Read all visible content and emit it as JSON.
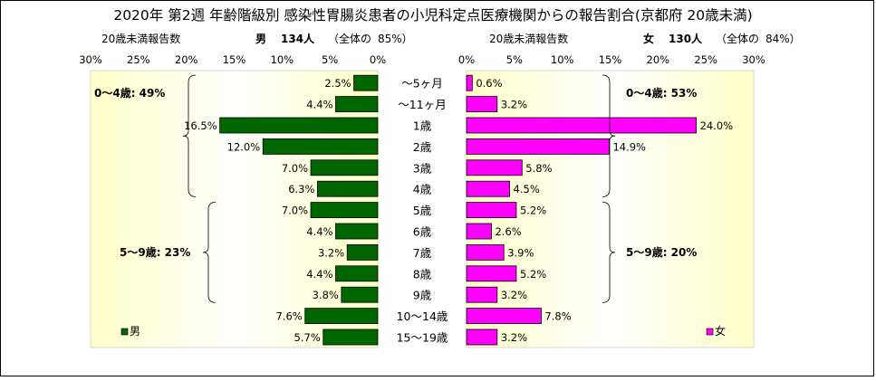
{
  "title": "2020年 第2週 年齢階級別 感染性胃腸炎患者の小児科定点医療機関からの報告割合(京都府 20歳未満)",
  "colors": {
    "male": "#006600",
    "female": "#ff00ff",
    "plot_bg_edge": "#ffffc8",
    "plot_bg_center": "#ffffff"
  },
  "chart_data": [
    {
      "type": "bar",
      "orientation": "horizontal",
      "direction": "right-to-left",
      "header": {
        "label": "20歳未満報告数",
        "sex": "男",
        "count": "134人",
        "total_note": "（全体の",
        "total_pct": "85%）"
      },
      "categories": [
        "～5ヶ月",
        "～11ヶ月",
        "1歳",
        "2歳",
        "3歳",
        "4歳",
        "5歳",
        "6歳",
        "7歳",
        "8歳",
        "9歳",
        "10～14歳",
        "15～19歳"
      ],
      "series": [
        {
          "name": "男",
          "values": [
            2.5,
            4.4,
            16.5,
            12.0,
            7.0,
            6.3,
            7.0,
            4.4,
            3.2,
            4.4,
            3.8,
            7.6,
            5.7
          ],
          "labels": [
            "2.5%",
            "4.4%",
            "16.5%",
            "12.0%",
            "7.0%",
            "6.3%",
            "7.0%",
            "4.4%",
            "3.2%",
            "4.4%",
            "3.8%",
            "7.6%",
            "5.7%"
          ]
        }
      ],
      "xlim": [
        0,
        30
      ],
      "ticks": [
        "30%",
        "25%",
        "20%",
        "15%",
        "10%",
        "5%",
        "0%"
      ],
      "annotations": [
        {
          "text": "0～4歳: 49%",
          "rows": [
            0,
            5
          ]
        },
        {
          "text": "5～9歳: 23%",
          "rows": [
            6,
            10
          ]
        }
      ],
      "legend": {
        "label": "男",
        "position": "bottom-left"
      }
    },
    {
      "type": "bar",
      "orientation": "horizontal",
      "direction": "left-to-right",
      "header": {
        "label": "20歳未満報告数",
        "sex": "女",
        "count": "130人",
        "total_note": "（全体の",
        "total_pct": "84%）"
      },
      "categories": [
        "～5ヶ月",
        "～11ヶ月",
        "1歳",
        "2歳",
        "3歳",
        "4歳",
        "5歳",
        "6歳",
        "7歳",
        "8歳",
        "9歳",
        "10～14歳",
        "15～19歳"
      ],
      "series": [
        {
          "name": "女",
          "values": [
            0.6,
            3.2,
            24.0,
            14.9,
            5.8,
            4.5,
            5.2,
            2.6,
            3.9,
            5.2,
            3.2,
            7.8,
            3.2
          ],
          "labels": [
            "0.6%",
            "3.2%",
            "24.0%",
            "14.9%",
            "5.8%",
            "4.5%",
            "5.2%",
            "2.6%",
            "3.9%",
            "5.2%",
            "3.2%",
            "7.8%",
            "3.2%"
          ]
        }
      ],
      "xlim": [
        0,
        30
      ],
      "ticks": [
        "0%",
        "5%",
        "10%",
        "15%",
        "20%",
        "25%",
        "30%"
      ],
      "annotations": [
        {
          "text": "0～4歳: 53%",
          "rows": [
            0,
            5
          ]
        },
        {
          "text": "5～9歳: 20%",
          "rows": [
            6,
            10
          ]
        }
      ],
      "legend": {
        "label": "女",
        "position": "bottom-right"
      }
    }
  ]
}
